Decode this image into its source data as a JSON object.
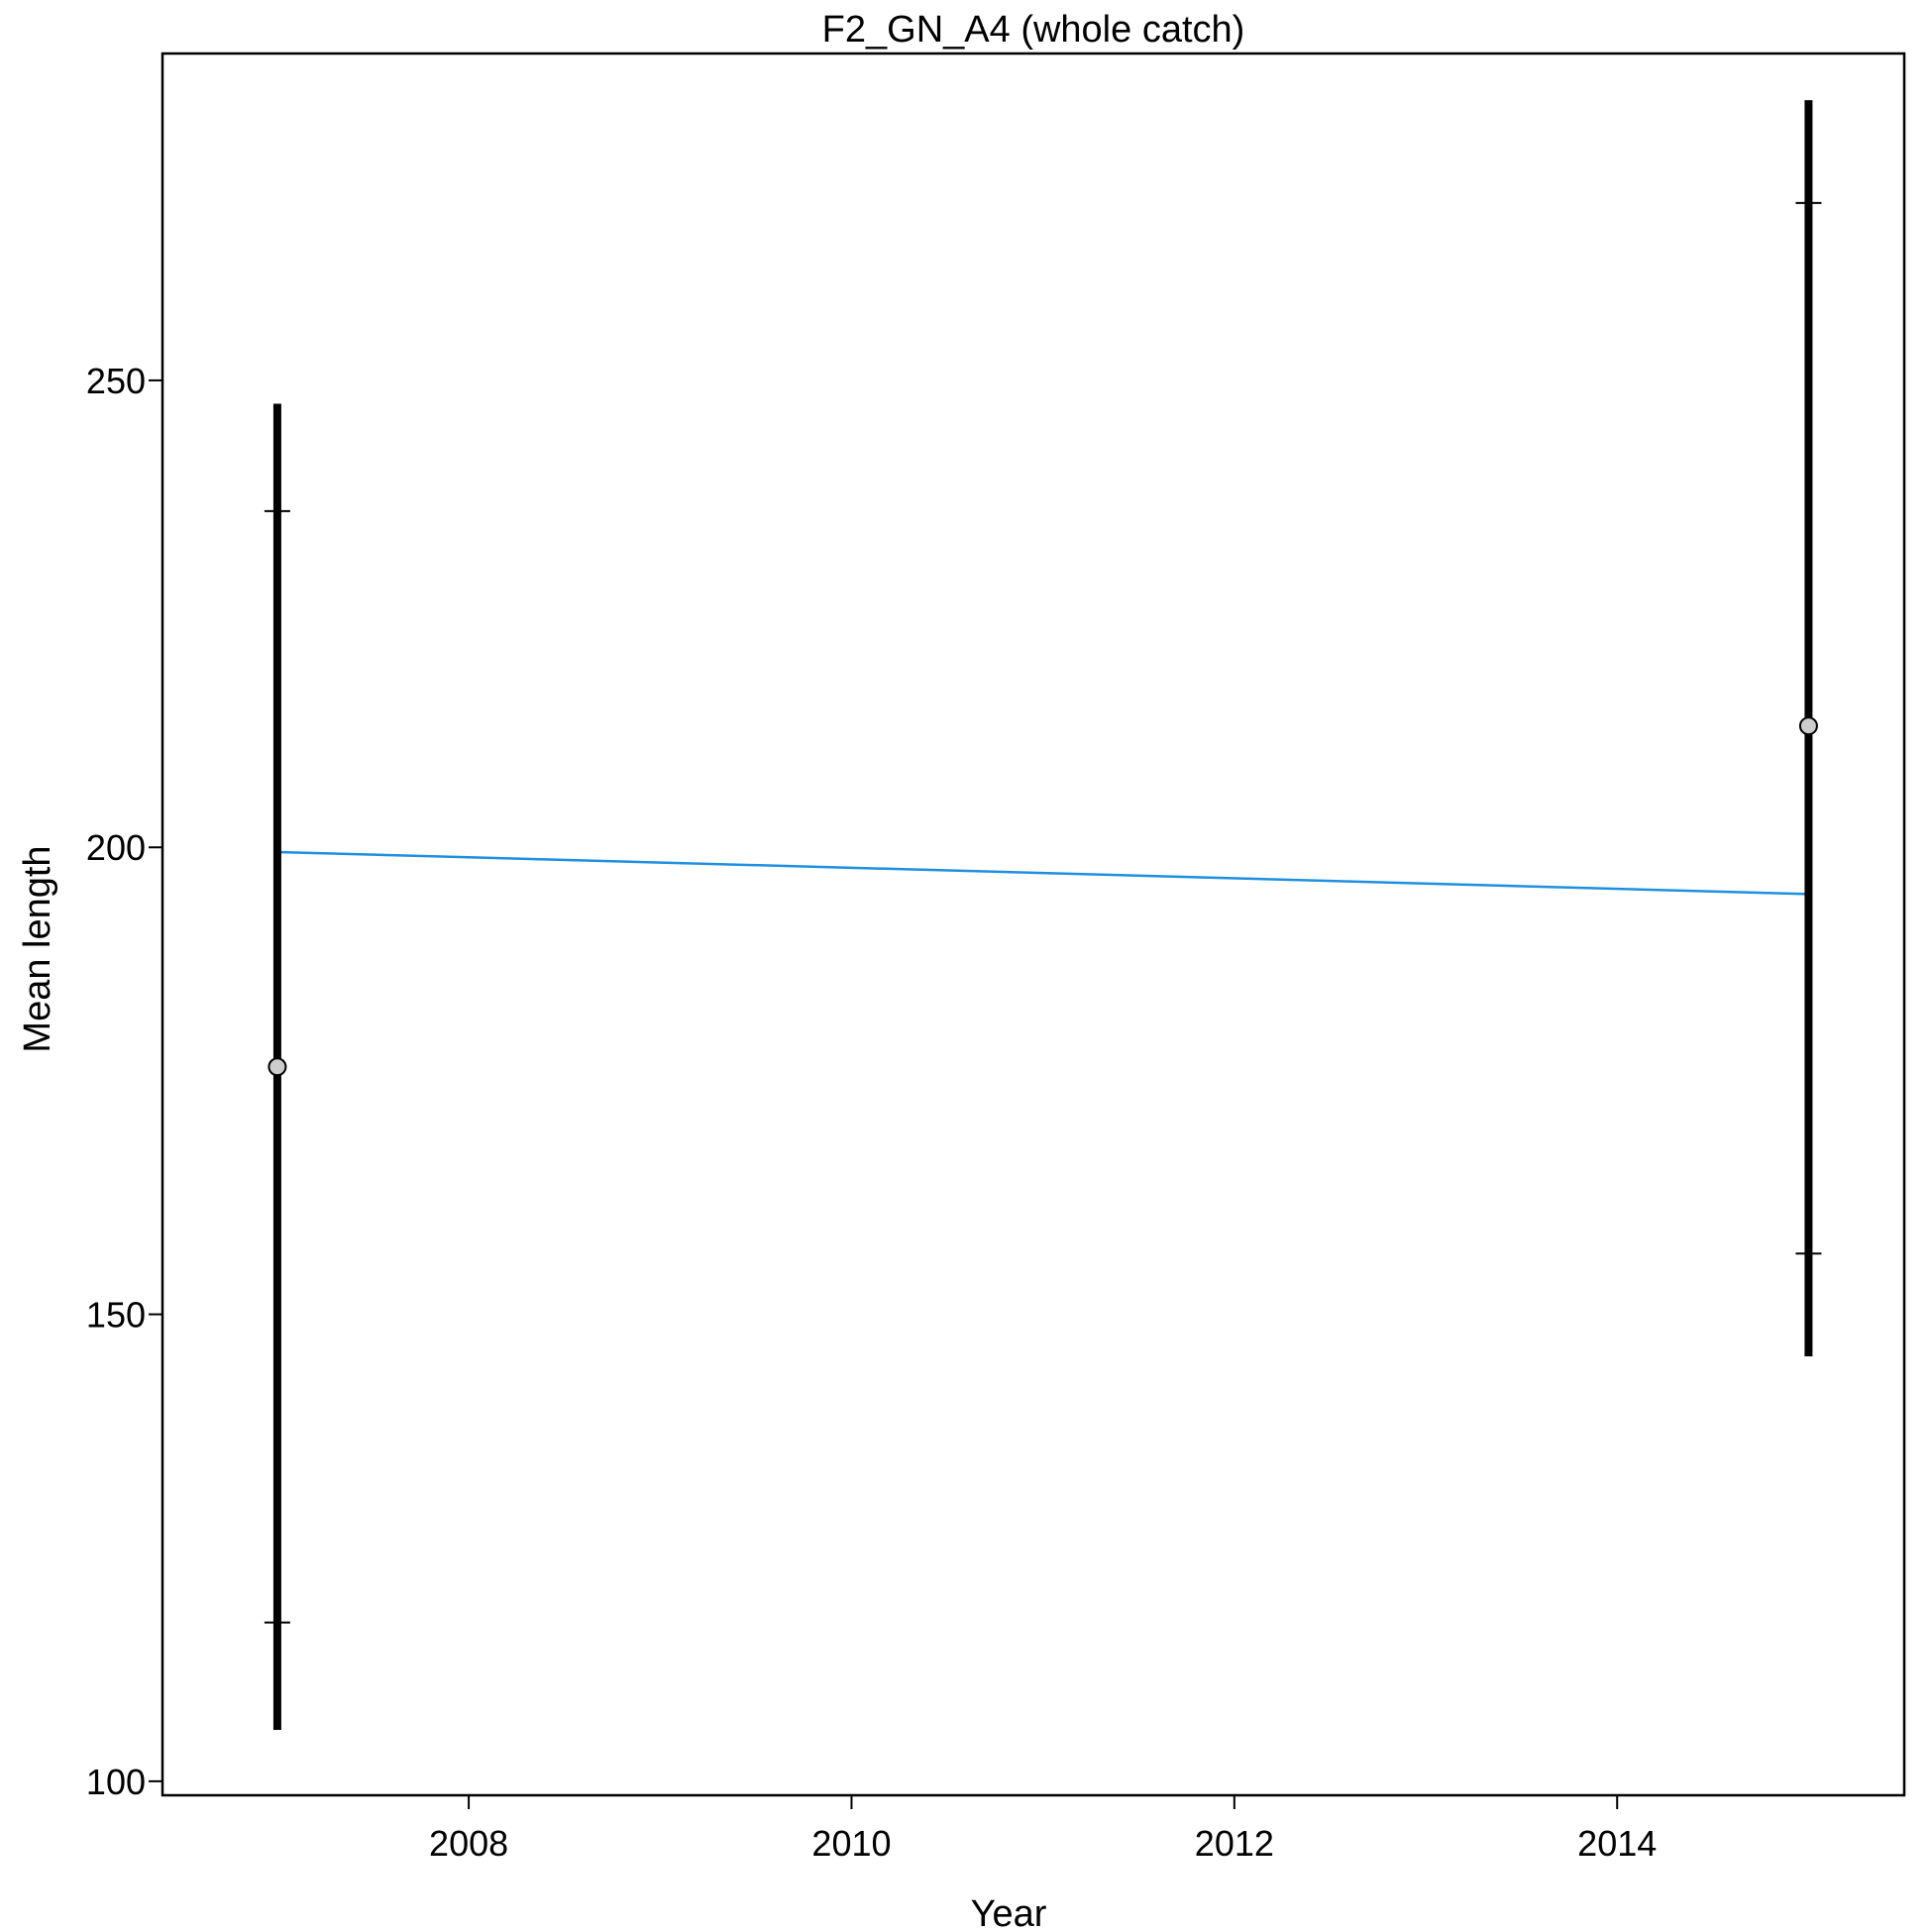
{
  "chart_data": {
    "type": "scatter",
    "title": "F2_GN_A4 (whole catch)",
    "xlabel": "Year",
    "ylabel": "Mean length",
    "xlim": [
      2006.4,
      2015.5
    ],
    "ylim": [
      98.5,
      285
    ],
    "x_ticks": [
      2008,
      2010,
      2012,
      2014
    ],
    "y_ticks": [
      100,
      150,
      200,
      250
    ],
    "x_tick_labels": [
      "2008",
      "2010",
      "2012",
      "2014"
    ],
    "y_tick_labels": [
      "100",
      "150",
      "200",
      "250"
    ],
    "grid": false,
    "legend": "none",
    "points": [
      {
        "x": 2007,
        "y": 176.5,
        "outer_low": 105.5,
        "outer_high": 247.5,
        "inner_low": 117,
        "inner_high": 236
      },
      {
        "x": 2015,
        "y": 213,
        "outer_low": 145.5,
        "outer_high": 280,
        "inner_low": 156.5,
        "inner_high": 269
      }
    ],
    "trend_line": {
      "x": [
        2007,
        2015
      ],
      "y": [
        199.5,
        195
      ],
      "color": "#1f8fe0"
    },
    "colors": {
      "point_fill": "#cccccc",
      "error_bar": "#000000",
      "axis": "#000000"
    }
  }
}
